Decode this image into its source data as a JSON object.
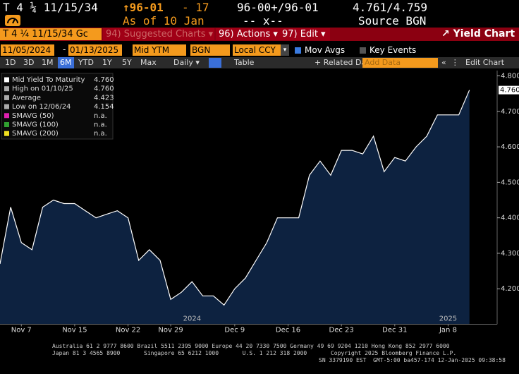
{
  "header": {
    "ticker": "T 4 ¼ 11/15/34",
    "price": "↑96-01",
    "change": "- 17",
    "bid_ask_price": "96-00+/96-01",
    "bid_ask_yield": "4.761/4.759",
    "as_of": "As of 10 Jan",
    "spread": "-- x--",
    "source": "Source BGN"
  },
  "toolbar": {
    "security": "T 4 ¼ 11/15/34 Gc",
    "suggested": "94) Suggested Charts ▾",
    "actions": "96) Actions ▾",
    "edit": "97) Edit ▾",
    "view_title": "Yield Chart"
  },
  "controls": {
    "start_date": "11/05/2024",
    "dash": "-",
    "end_date": "01/13/2025",
    "field": "Mid YTM",
    "pricing_source": "BGN",
    "currency": "Local CCY",
    "mov_avgs": "Mov Avgs",
    "key_events": "Key Events"
  },
  "periods": {
    "buttons": [
      "1D",
      "3D",
      "1M",
      "6M",
      "YTD",
      "1Y",
      "5Y",
      "Max"
    ],
    "frequency": "Daily ▾",
    "table": "Table",
    "related": "+ Related Data ▾",
    "add_data": "Add Data",
    "edit_chart": "Edit Chart"
  },
  "legend": {
    "rows": [
      [
        "Mid Yield To Maturity",
        "4.760"
      ],
      [
        "High on 01/10/25",
        "4.760"
      ],
      [
        "Average",
        "4.423"
      ],
      [
        "Low on 12/06/24",
        "4.154"
      ],
      [
        "SMAVG (50)",
        "n.a."
      ],
      [
        "SMAVG (100)",
        "n.a."
      ],
      [
        "SMAVG (200)",
        "n.a."
      ]
    ],
    "colors": [
      "#ffffff",
      "#aaaaaa",
      "#aaaaaa",
      "#aaaaaa",
      "#e020b0",
      "#30a030",
      "#f0e020"
    ]
  },
  "chart_data": {
    "type": "area",
    "color": "#ffffff",
    "fill": "#0d2240",
    "categories": [
      null,
      null,
      "Nov 7",
      null,
      null,
      null,
      null,
      "Nov 15",
      null,
      null,
      null,
      null,
      "Nov 22",
      null,
      null,
      null,
      "Nov 29",
      null,
      null,
      null,
      null,
      null,
      "Dec 9",
      null,
      null,
      null,
      null,
      "Dec 16",
      null,
      null,
      null,
      null,
      "Dec 23",
      null,
      null,
      null,
      null,
      "Dec 31",
      null,
      null,
      null,
      null,
      "Jan 8",
      null,
      null
    ],
    "year_labels": [
      null,
      null,
      null,
      null,
      null,
      null,
      null,
      null,
      null,
      null,
      null,
      null,
      null,
      null,
      null,
      null,
      null,
      null,
      "2024",
      null,
      null,
      null,
      null,
      null,
      null,
      null,
      null,
      null,
      null,
      null,
      null,
      null,
      null,
      null,
      null,
      null,
      null,
      null,
      null,
      null,
      null,
      null,
      "2025",
      null,
      null
    ],
    "values": [
      4.27,
      4.43,
      4.33,
      4.31,
      4.43,
      4.45,
      4.44,
      4.44,
      4.42,
      4.4,
      4.41,
      4.42,
      4.4,
      4.28,
      4.31,
      4.28,
      4.17,
      4.19,
      4.22,
      4.18,
      4.18,
      4.154,
      4.2,
      4.23,
      4.28,
      4.33,
      4.4,
      4.4,
      4.4,
      4.52,
      4.56,
      4.52,
      4.59,
      4.59,
      4.58,
      4.63,
      4.53,
      4.57,
      4.56,
      4.6,
      4.63,
      4.69,
      4.69,
      4.69,
      4.76
    ],
    "last_label": "4.760",
    "ylim": [
      4.1,
      4.815
    ],
    "yticks": [
      {
        "value": 4.2,
        "label": "4.200"
      },
      {
        "value": 4.3,
        "label": "4.300"
      },
      {
        "value": 4.4,
        "label": "4.400"
      },
      {
        "value": 4.5,
        "label": "4.500"
      },
      {
        "value": 4.6,
        "label": "4.600"
      },
      {
        "value": 4.7,
        "label": "4.700"
      },
      {
        "value": 4.8,
        "label": "4.800"
      }
    ]
  },
  "footer": {
    "line1": "Australia 61 2 9777 8600 Brazil 5511 2395 9000 Europe 44 20 7330 7500 Germany 49 69 9204 1210 Hong Kong 852 2977 6000",
    "line2": "Japan 81 3 4565 8900       Singapore 65 6212 1000       U.S. 1 212 318 2000       Copyright 2025 Bloomberg Finance L.P.",
    "line3": "SN 3379190 EST  GMT-5:00 ba457-174 12-Jan-2025 09:38:58"
  }
}
